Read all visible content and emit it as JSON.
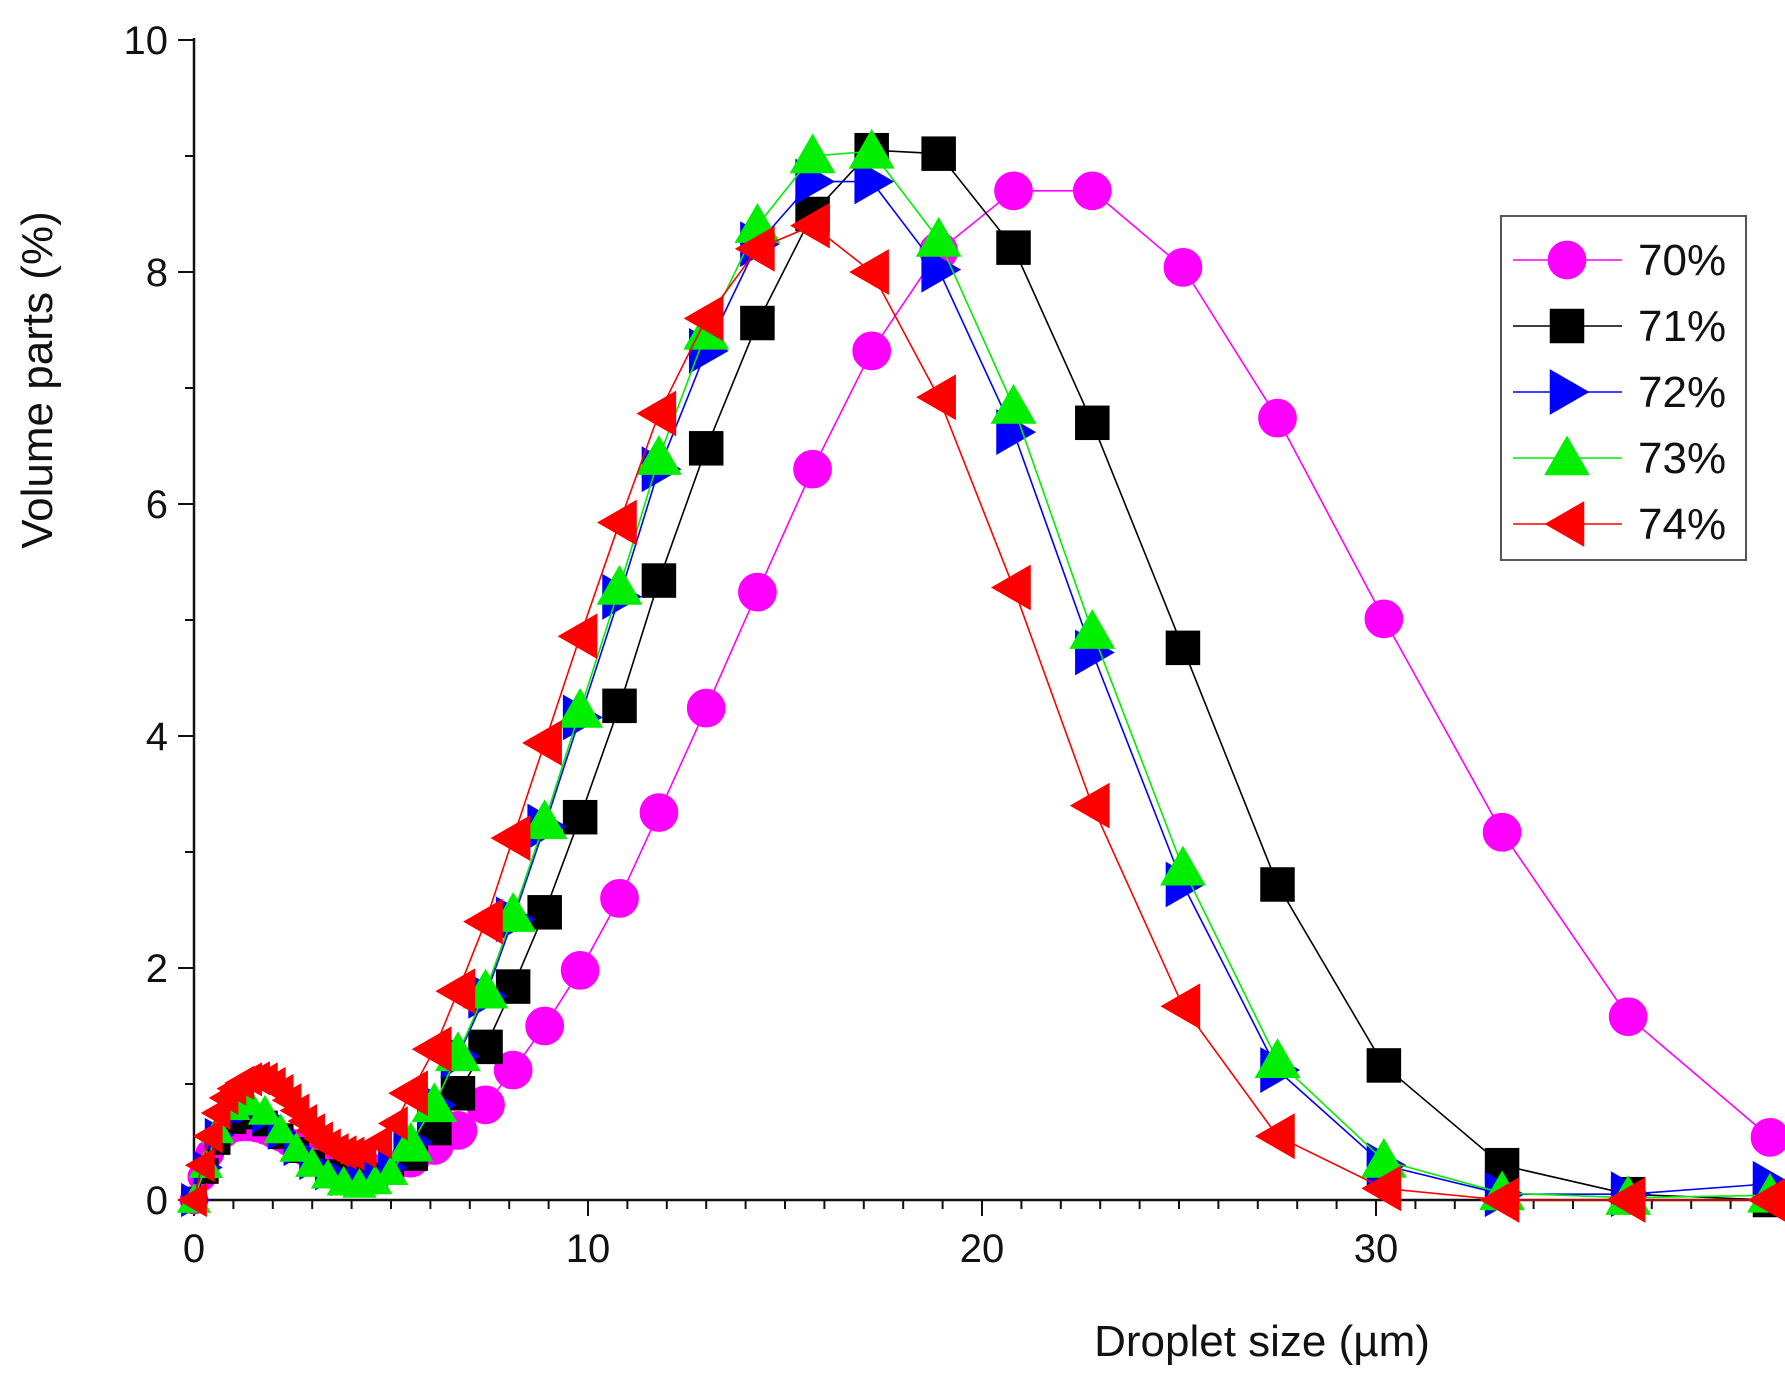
{
  "chart_data": {
    "type": "line",
    "title": "",
    "xlabel": "Droplet size (µm)",
    "ylabel": "Volume parts (%)",
    "xlim": [
      0,
      40
    ],
    "ylim": [
      0,
      10
    ],
    "x_ticks": [
      0,
      10,
      20,
      30
    ],
    "x_tick_labels": [
      "0",
      "10",
      "20",
      "30"
    ],
    "x_minor_step": 1,
    "y_ticks": [
      0,
      2,
      4,
      6,
      8,
      10
    ],
    "y_tick_labels": [
      "0",
      "2",
      "4",
      "6",
      "8",
      "10"
    ],
    "y_minor_step": 1,
    "grid": false,
    "legend_position": "top-right",
    "series": [
      {
        "name": "70%",
        "color": "#ff00ff",
        "marker": "circle",
        "x": [
          0,
          0.2,
          0.4,
          0.6,
          0.8,
          1.0,
          1.2,
          1.4,
          1.6,
          1.8,
          2.0,
          2.2,
          2.4,
          2.6,
          2.8,
          3.0,
          3.2,
          3.4,
          3.6,
          3.8,
          4.0,
          4.2,
          4.4,
          4.6,
          4.8,
          5.0,
          5.2,
          5.5,
          6.1,
          6.7,
          7.4,
          8.1,
          8.9,
          9.8,
          10.8,
          11.8,
          13.0,
          14.3,
          15.7,
          17.2,
          18.9,
          20.8,
          22.8,
          25.1,
          27.5,
          30.2,
          33.2,
          36.4,
          40.0
        ],
        "y": [
          0,
          0.2,
          0.4,
          0.52,
          0.58,
          0.62,
          0.63,
          0.63,
          0.62,
          0.6,
          0.57,
          0.54,
          0.5,
          0.46,
          0.42,
          0.38,
          0.35,
          0.32,
          0.3,
          0.28,
          0.27,
          0.27,
          0.27,
          0.27,
          0.28,
          0.29,
          0.31,
          0.36,
          0.47,
          0.6,
          0.82,
          1.12,
          1.5,
          1.98,
          2.6,
          3.34,
          4.24,
          5.24,
          6.3,
          7.32,
          8.18,
          8.7,
          8.7,
          8.04,
          6.74,
          5.01,
          3.17,
          1.58,
          0.54
        ]
      },
      {
        "name": "71%",
        "color": "#000000",
        "marker": "square",
        "x": [
          0,
          0.3,
          0.6,
          1.0,
          1.4,
          1.8,
          2.2,
          2.6,
          3.0,
          3.4,
          3.8,
          4.2,
          4.6,
          5.0,
          5.5,
          6.1,
          6.7,
          7.4,
          8.1,
          8.9,
          9.8,
          10.8,
          11.8,
          13.0,
          14.3,
          15.7,
          17.2,
          18.9,
          20.8,
          22.8,
          25.1,
          27.5,
          30.2,
          33.2,
          36.4,
          40.0
        ],
        "y": [
          0,
          0.25,
          0.5,
          0.68,
          0.72,
          0.66,
          0.55,
          0.43,
          0.32,
          0.24,
          0.2,
          0.19,
          0.21,
          0.26,
          0.4,
          0.62,
          0.92,
          1.32,
          1.84,
          2.48,
          3.3,
          4.26,
          5.34,
          6.48,
          7.56,
          8.5,
          9.05,
          9.02,
          8.21,
          6.7,
          4.76,
          2.72,
          1.16,
          0.3,
          0.05,
          0.0
        ]
      },
      {
        "name": "72%",
        "color": "#0000ff",
        "marker": "triangle-right",
        "x": [
          0,
          0.3,
          0.6,
          1.0,
          1.4,
          1.8,
          2.2,
          2.6,
          3.0,
          3.4,
          3.8,
          4.2,
          4.6,
          5.0,
          5.5,
          6.1,
          6.7,
          7.4,
          8.1,
          8.9,
          9.8,
          10.8,
          11.8,
          13.0,
          14.3,
          15.7,
          17.2,
          18.9,
          20.8,
          22.8,
          25.1,
          27.5,
          30.2,
          33.2,
          36.4,
          40.0
        ],
        "y": [
          0,
          0.28,
          0.56,
          0.75,
          0.8,
          0.72,
          0.58,
          0.44,
          0.32,
          0.23,
          0.18,
          0.17,
          0.2,
          0.28,
          0.5,
          0.82,
          1.24,
          1.76,
          2.42,
          3.22,
          4.16,
          5.2,
          6.3,
          7.32,
          8.24,
          8.78,
          8.78,
          8.02,
          6.62,
          4.72,
          2.72,
          1.12,
          0.3,
          0.05,
          0.05,
          0.14
        ]
      },
      {
        "name": "73%",
        "color": "#00ee00",
        "marker": "triangle-up",
        "x": [
          0,
          0.3,
          0.6,
          1.0,
          1.4,
          1.8,
          2.2,
          2.6,
          3.0,
          3.4,
          3.8,
          4.2,
          4.6,
          5.0,
          5.5,
          6.1,
          6.7,
          7.4,
          8.1,
          8.9,
          9.8,
          10.8,
          11.8,
          13.0,
          14.3,
          15.7,
          17.2,
          18.9,
          20.8,
          22.8,
          25.1,
          27.5,
          30.2,
          33.2,
          36.4,
          40.0
        ],
        "y": [
          0,
          0.3,
          0.6,
          0.8,
          0.84,
          0.76,
          0.6,
          0.44,
          0.31,
          0.21,
          0.15,
          0.13,
          0.16,
          0.24,
          0.48,
          0.82,
          1.26,
          1.8,
          2.46,
          3.26,
          4.22,
          5.28,
          6.4,
          7.48,
          8.4,
          9.0,
          9.04,
          8.28,
          6.84,
          4.9,
          2.86,
          1.2,
          0.34,
          0.06,
          0.02,
          0.04
        ]
      },
      {
        "name": "74%",
        "color": "#ff0000",
        "marker": "triangle-left",
        "x": [
          0,
          0.2,
          0.4,
          0.6,
          0.8,
          1.0,
          1.2,
          1.4,
          1.6,
          1.8,
          2.0,
          2.2,
          2.4,
          2.6,
          2.8,
          3.0,
          3.2,
          3.4,
          3.6,
          3.8,
          4.0,
          4.3,
          4.7,
          5.1,
          5.5,
          6.1,
          6.7,
          7.4,
          8.1,
          8.9,
          9.8,
          10.8,
          11.8,
          13.0,
          14.3,
          15.7,
          17.2,
          18.9,
          20.8,
          22.8,
          25.1,
          27.5,
          30.2,
          33.2,
          36.4,
          40.0
        ],
        "y": [
          0,
          0.3,
          0.55,
          0.75,
          0.88,
          0.96,
          1.01,
          1.04,
          1.05,
          1.04,
          1.0,
          0.94,
          0.86,
          0.77,
          0.68,
          0.6,
          0.53,
          0.47,
          0.43,
          0.41,
          0.4,
          0.42,
          0.5,
          0.66,
          0.92,
          1.3,
          1.8,
          2.4,
          3.12,
          3.94,
          4.86,
          5.84,
          6.78,
          7.6,
          8.2,
          8.4,
          8.0,
          6.92,
          5.28,
          3.4,
          1.67,
          0.55,
          0.1,
          0.0,
          0.0,
          0.0
        ]
      }
    ]
  }
}
